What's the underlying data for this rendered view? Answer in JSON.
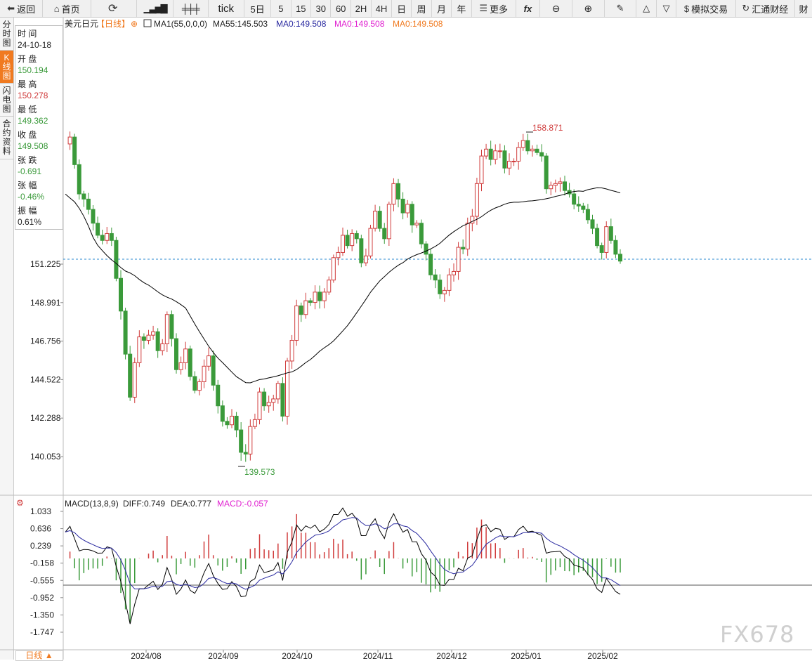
{
  "toolbar": {
    "back": "返回",
    "home": "首页",
    "tick": "tick",
    "d5": "5日",
    "m5": "5",
    "m15": "15",
    "m30": "30",
    "m60": "60",
    "h2": "2H",
    "h4": "4H",
    "day": "日",
    "week": "周",
    "month": "月",
    "year": "年",
    "more": "更多",
    "sim_trade": "模拟交易",
    "news": "汇通财经",
    "cut": "财"
  },
  "sidetabs": [
    {
      "label": "分时图"
    },
    {
      "label": "K线图"
    },
    {
      "label": "闪电图"
    },
    {
      "label": "合约资料"
    }
  ],
  "info": {
    "time_label": "时 间",
    "date": "24-10-18",
    "open_label": "开 盘",
    "open": "150.194",
    "high_label": "最 高",
    "high": "150.278",
    "low_label": "最 低",
    "low": "149.362",
    "close_label": "收 盘",
    "close": "149.508",
    "change_label": "张 跌",
    "change": "-0.691",
    "pct_label": "张 幅",
    "pct": "-0.46%",
    "amp_label": "振 幅",
    "amp": "0.61%"
  },
  "header": {
    "symbol": "美元日元",
    "period": "【日线】",
    "ma1": "MA1(55,0,0,0)",
    "ma55": "MA55:145.503",
    "ma0a": "MA0:149.508",
    "ma0b": "MA0:149.508",
    "ma0c": "MA0:149.508"
  },
  "macd_header": {
    "name": "MACD(13,8,9)",
    "diff": "DIFF:0.749",
    "dea": "DEA:0.777",
    "macd": "MACD:-0.057"
  },
  "chart_data": {
    "type": "candlestick",
    "price_ticks": [
      "151.225",
      "148.991",
      "146.756",
      "144.522",
      "142.288",
      "140.053"
    ],
    "current_price_line": 151.225,
    "annotations": {
      "high": "158.871",
      "low": "139.573"
    },
    "date_ticks": [
      "2024/08",
      "2024/09",
      "2024/10",
      "2024/11",
      "2024/12",
      "2025/01",
      "2025/02"
    ],
    "macd_ticks": [
      "1.033",
      "0.636",
      "0.239",
      "-0.158",
      "-0.555",
      "-0.952",
      "-1.350",
      "-1.747"
    ],
    "up_color": "#d03c3c",
    "down_color": "#3a9a3a",
    "ma_color": "#000000",
    "price_path": [
      158.2,
      158.6,
      157.0,
      155.3,
      155.0,
      154.4,
      153.6,
      152.9,
      152.6,
      153.0,
      152.6,
      150.4,
      148.5,
      146.0,
      143.5,
      145.5,
      147.0,
      146.8,
      147.1,
      147.3,
      146.2,
      146.6,
      148.3,
      146.9,
      145.1,
      145.5,
      146.3,
      144.7,
      143.9,
      144.4,
      145.3,
      145.9,
      144.2,
      143.0,
      142.1,
      141.9,
      142.4,
      141.6,
      140.3,
      140.2,
      141.8,
      142.2,
      143.8,
      143.0,
      143.2,
      143.4,
      144.3,
      142.4,
      145.6,
      146.8,
      148.8,
      148.3,
      149.1,
      149.0,
      149.6,
      149.1,
      149.6,
      150.3,
      151.6,
      151.9,
      152.9,
      152.3,
      153.0,
      152.7,
      151.3,
      151.7,
      153.3,
      154.3,
      153.3,
      152.7,
      154.7,
      155.9,
      155.0,
      154.2,
      154.7,
      153.5,
      153.6,
      152.4,
      151.8,
      150.6,
      150.3,
      149.5,
      149.7,
      150.6,
      150.8,
      152.2,
      152.1,
      153.6,
      154.0,
      155.9,
      157.5,
      157.9,
      157.3,
      157.8,
      157.8,
      156.8,
      157.2,
      157.2,
      158.0,
      158.4,
      157.8,
      157.9,
      157.7,
      157.5,
      155.6,
      155.8,
      155.9,
      156.0,
      155.5,
      155.3,
      154.7,
      154.6,
      154.4,
      153.8,
      153.3,
      152.3,
      151.9,
      153.4,
      152.6,
      151.8,
      151.4
    ]
  }
}
